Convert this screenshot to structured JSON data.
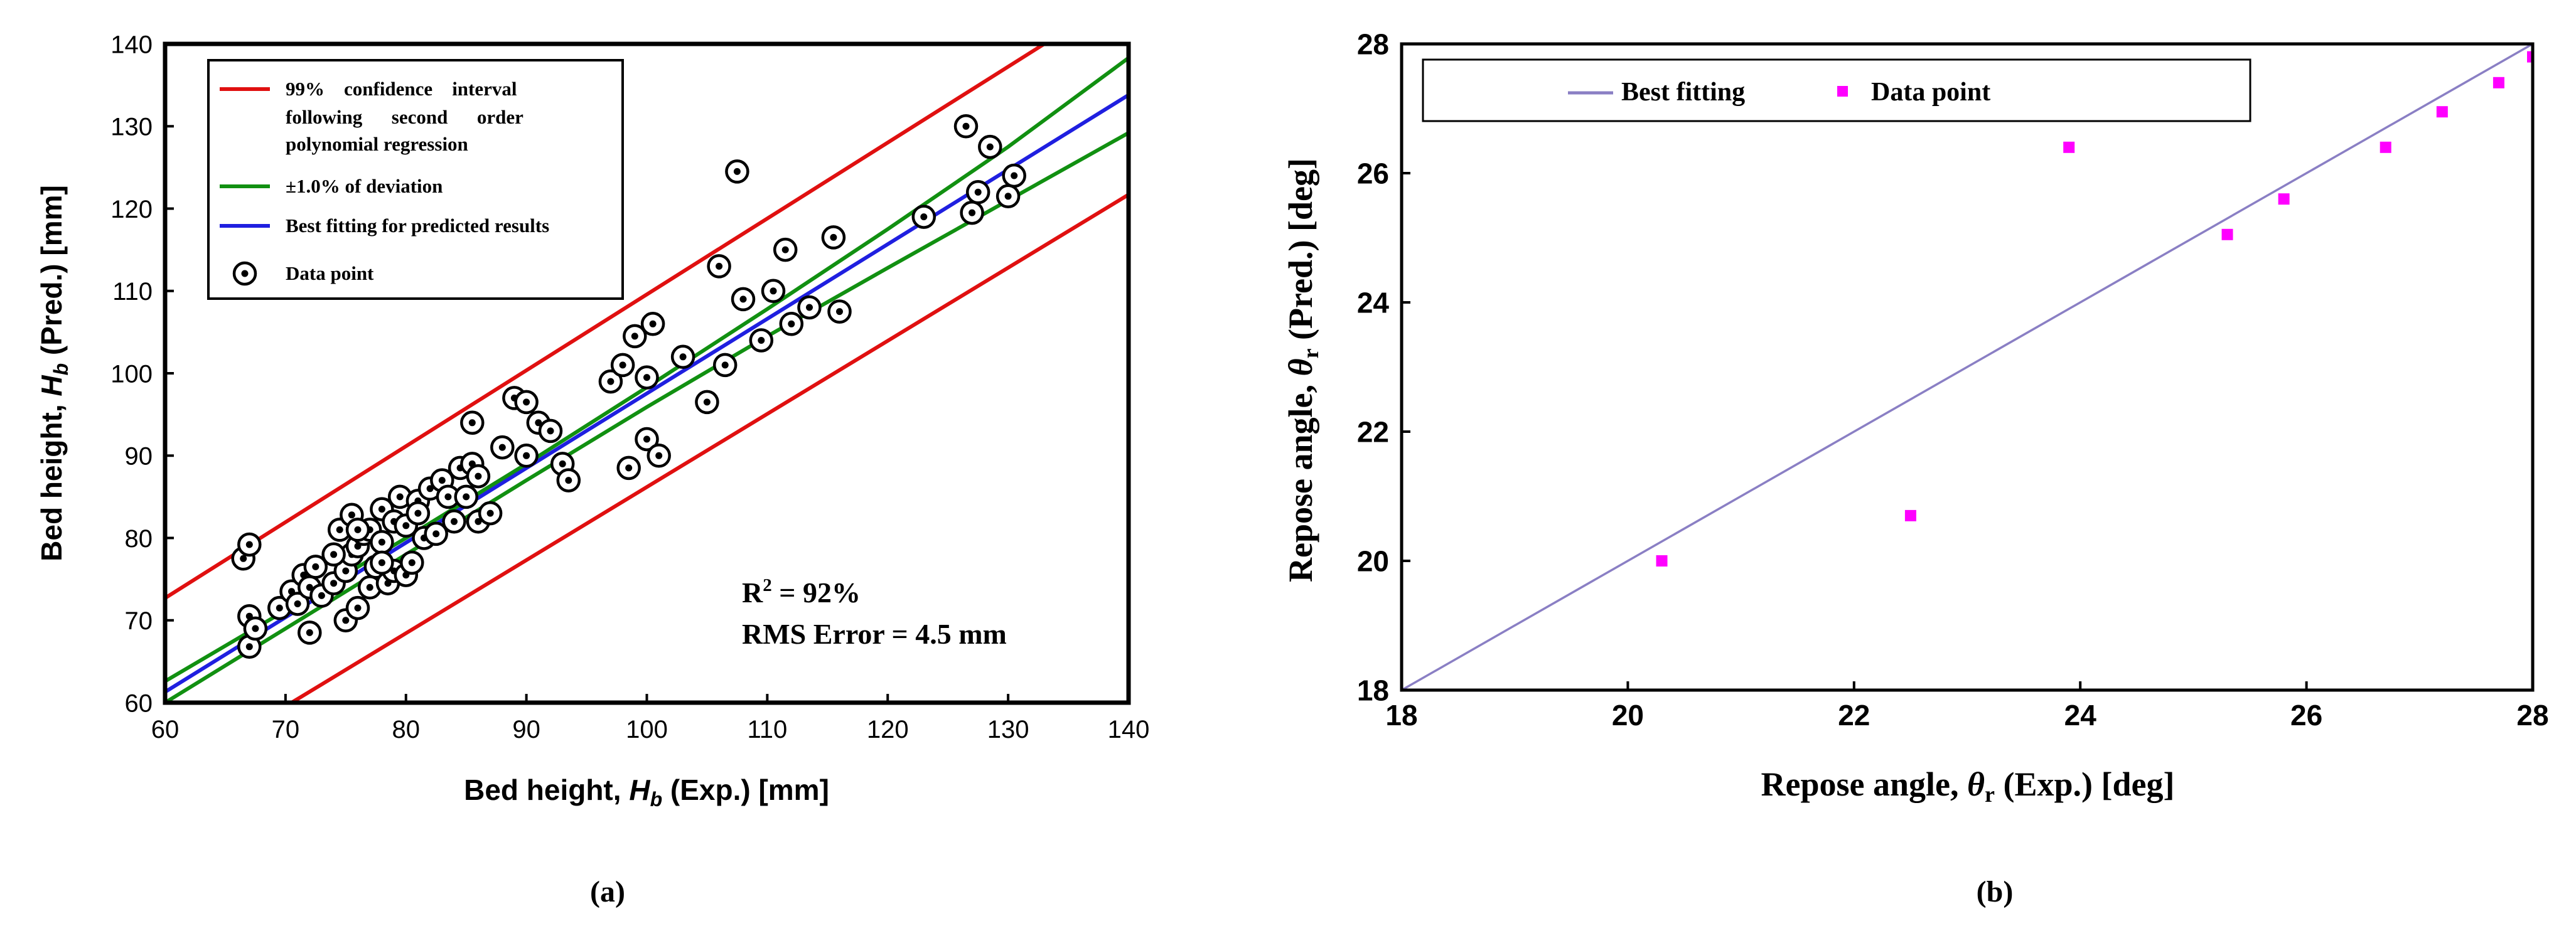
{
  "chart_data": [
    {
      "type": "scatter",
      "panel_label": "(a)",
      "xlabel_prefix": "Bed height, ",
      "xlabel_symbol": "H",
      "xlabel_sub": "b",
      "xlabel_suffix": " (Exp.) [mm]",
      "ylabel_prefix": "Bed height, ",
      "ylabel_symbol": "H",
      "ylabel_sub": "b",
      "ylabel_suffix": " (Pred.) [mm]",
      "xlim": [
        60,
        140
      ],
      "ylim": [
        60,
        140
      ],
      "x_ticks": [
        "60",
        "70",
        "80",
        "90",
        "100",
        "110",
        "120",
        "130",
        "140"
      ],
      "y_ticks": [
        "60",
        "70",
        "80",
        "90",
        "100",
        "110",
        "120",
        "130",
        "140"
      ],
      "grid": false,
      "legend_position": "top-left",
      "legend": {
        "ci_line1": "99%    confidence    interval",
        "ci_line2": "following      second      order",
        "ci_line3": "polynomial regression",
        "deviation": "±1.0% of deviation",
        "best_fit": "Best fitting for predicted results",
        "data_point": "Data point"
      },
      "annotation": {
        "r2_prefix": "R",
        "r2_sup": "2",
        "r2_value": " = 92%",
        "rms": "RMS Error = 4.5 mm"
      },
      "series": [
        {
          "name": "Best fitting for predicted results",
          "kind": "line",
          "color": "#1f1fe0",
          "x": [
            60,
            140
          ],
          "y": [
            61.3,
            133.8
          ]
        },
        {
          "name": "±1.0% of deviation (upper)",
          "kind": "line",
          "color": "#119011",
          "x": [
            60,
            70,
            80,
            90,
            100,
            110,
            120,
            130,
            140
          ],
          "y": [
            62.6,
            71.2,
            80.0,
            89.0,
            98.3,
            107.8,
            117.5,
            127.5,
            138.3
          ]
        },
        {
          "name": "±1.0% of deviation (lower)",
          "kind": "line",
          "color": "#119011",
          "x": [
            60,
            70,
            80,
            90,
            100,
            110,
            120,
            130,
            140
          ],
          "y": [
            60.0,
            69.0,
            78.0,
            87.0,
            95.9,
            104.5,
            112.8,
            121.0,
            129.2
          ]
        },
        {
          "name": "99% confidence interval (upper)",
          "kind": "line",
          "color": "#e01010",
          "x": [
            60,
            133
          ],
          "y": [
            72.7,
            140
          ]
        },
        {
          "name": "99% confidence interval (lower)",
          "kind": "line",
          "color": "#e01010",
          "x": [
            70.5,
            140
          ],
          "y": [
            60,
            121.7
          ]
        },
        {
          "name": "Data point",
          "kind": "scatter",
          "color": "#000000",
          "x": [
            67.0,
            66.5,
            67.0,
            67.0,
            67.5,
            69.5,
            70.5,
            71.0,
            71.5,
            72.0,
            72.0,
            72.5,
            73.0,
            74.0,
            74.5,
            75.0,
            75.0,
            75.5,
            75.5,
            76.0,
            76.0,
            76.5,
            77.0,
            77.0,
            77.5,
            78.0,
            78.0,
            78.5,
            79.0,
            79.0,
            79.5,
            80.0,
            80.0,
            80.5,
            81.0,
            81.5,
            81.0,
            82.0,
            82.5,
            83.0,
            83.5,
            84.0,
            84.5,
            85.0,
            85.5,
            85.5,
            86.0,
            86.0,
            87.0,
            88.0,
            89.0,
            90.0,
            91.0,
            92.0,
            93.0,
            93.5,
            97.0,
            98.0,
            98.5,
            99.0,
            100.0,
            100.0,
            100.5,
            101.0,
            103.0,
            105.0,
            106.0,
            106.5,
            108.0,
            107.5,
            109.5,
            110.5,
            111.5,
            112.0,
            113.5,
            115.5,
            116.0,
            123.0,
            127.0,
            126.5,
            127.5,
            128.5,
            130.0,
            130.5,
            90.0,
            74.0,
            76.0,
            78.0
          ],
          "y": [
            66.8,
            77.5,
            79.2,
            70.5,
            69.0,
            71.5,
            73.5,
            72.0,
            75.5,
            68.5,
            74.0,
            76.5,
            73.0,
            74.5,
            81.0,
            70.0,
            76.0,
            82.8,
            78.0,
            71.5,
            79.0,
            80.5,
            74.0,
            81.0,
            76.5,
            79.5,
            83.5,
            74.5,
            82.0,
            76.0,
            85.0,
            75.5,
            81.5,
            77.0,
            84.5,
            80.0,
            83.0,
            86.0,
            80.5,
            87.0,
            85.0,
            82.0,
            88.5,
            85.0,
            89.0,
            94.0,
            82.0,
            87.5,
            83.0,
            91.0,
            97.0,
            96.5,
            94.0,
            93.0,
            89.0,
            87.0,
            99.0,
            101.0,
            88.5,
            104.5,
            92.0,
            99.5,
            106.0,
            90.0,
            102.0,
            96.5,
            113.0,
            101.0,
            109.0,
            124.5,
            104.0,
            110.0,
            115.0,
            106.0,
            108.0,
            116.5,
            107.5,
            119.0,
            119.5,
            130.0,
            122.0,
            127.5,
            121.5,
            124.0,
            90.0,
            78.0,
            81.0,
            77.0
          ]
        }
      ]
    },
    {
      "type": "scatter",
      "panel_label": "(b)",
      "xlabel_prefix": "Repose angle, ",
      "xlabel_symbol": "θ",
      "xlabel_sub": "r",
      "xlabel_suffix": " (Exp.) [deg]",
      "ylabel_prefix": "Repose angle, ",
      "ylabel_symbol": "θ",
      "ylabel_sub": "r",
      "ylabel_suffix": " (Pred.) [deg]",
      "xlim": [
        18,
        28
      ],
      "ylim": [
        18,
        28
      ],
      "x_ticks": [
        "18",
        "20",
        "22",
        "24",
        "26",
        "28"
      ],
      "y_ticks": [
        "18",
        "20",
        "22",
        "24",
        "26",
        "28"
      ],
      "grid": false,
      "legend_position": "top",
      "legend": {
        "best_fit": "Best fitting",
        "data_point": "Data point"
      },
      "series": [
        {
          "name": "Best fitting",
          "kind": "line",
          "color": "#8a7fc4",
          "x": [
            18,
            28
          ],
          "y": [
            18,
            28
          ]
        },
        {
          "name": "Data point",
          "kind": "scatter",
          "color": "#ff00ff",
          "x": [
            20.3,
            22.5,
            23.9,
            25.3,
            25.8,
            26.7,
            27.2,
            27.7,
            28.0
          ],
          "y": [
            20.0,
            20.7,
            26.4,
            25.05,
            25.6,
            26.4,
            26.95,
            27.4,
            27.8
          ]
        }
      ]
    }
  ]
}
